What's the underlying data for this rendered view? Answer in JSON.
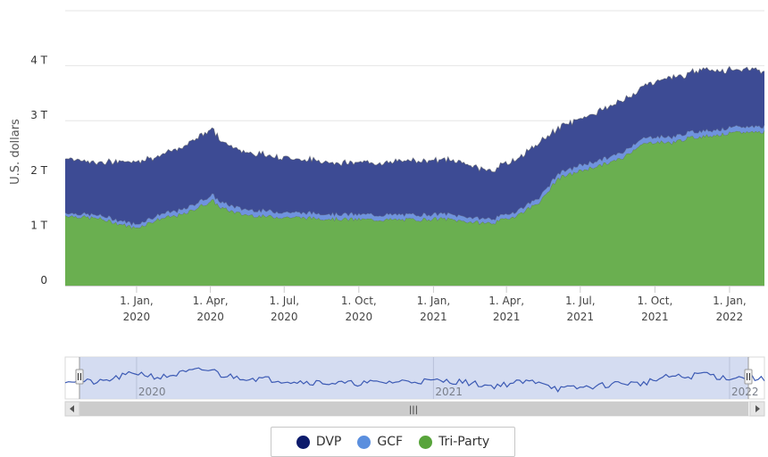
{
  "chart_data": {
    "type": "area",
    "stacked": true,
    "ylabel": "U.S. dollars",
    "yticks": [
      "0",
      "1 T",
      "2 T",
      "3 T",
      "4 T"
    ],
    "ylim": [
      0,
      5
    ],
    "unit": "trillions",
    "xticks": [
      {
        "day": 1,
        "date": "1. Jan,",
        "year": "2020"
      },
      {
        "day": 92,
        "date": "1. Apr,",
        "year": "2020"
      },
      {
        "day": 183,
        "date": "1. Jul,",
        "year": "2020"
      },
      {
        "day": 275,
        "date": "1. Oct,",
        "year": "2020"
      },
      {
        "day": 367,
        "date": "1. Jan,",
        "year": "2021"
      },
      {
        "day": 457,
        "date": "1. Apr,",
        "year": "2021"
      },
      {
        "day": 548,
        "date": "1. Jul,",
        "year": "2021"
      },
      {
        "day": 640,
        "date": "1. Oct,",
        "year": "2021"
      },
      {
        "day": 732,
        "date": "1. Jan,",
        "year": "2022"
      }
    ],
    "xrange_days": [
      -87,
      775
    ],
    "x": [
      -87,
      -45,
      0,
      30,
      60,
      80,
      95,
      105,
      130,
      160,
      200,
      260,
      300,
      340,
      380,
      400,
      420,
      440,
      470,
      500,
      520,
      550,
      580,
      600,
      620,
      640,
      660,
      680,
      700,
      720,
      740,
      760,
      775
    ],
    "series": [
      {
        "name": "Tri-Party",
        "color": "#6aaf50",
        "values": [
          1.28,
          1.22,
          1.05,
          1.22,
          1.3,
          1.45,
          1.55,
          1.42,
          1.3,
          1.26,
          1.24,
          1.21,
          1.2,
          1.2,
          1.22,
          1.18,
          1.15,
          1.14,
          1.28,
          1.55,
          1.95,
          2.1,
          2.22,
          2.32,
          2.55,
          2.62,
          2.6,
          2.68,
          2.72,
          2.75,
          2.78,
          2.8,
          2.8
        ]
      },
      {
        "name": "GCF",
        "color": "#6f93de",
        "values": [
          0.05,
          0.06,
          0.07,
          0.08,
          0.09,
          0.1,
          0.1,
          0.1,
          0.1,
          0.1,
          0.09,
          0.09,
          0.09,
          0.09,
          0.09,
          0.09,
          0.08,
          0.08,
          0.08,
          0.09,
          0.09,
          0.1,
          0.1,
          0.1,
          0.1,
          0.1,
          0.1,
          0.1,
          0.1,
          0.1,
          0.1,
          0.1,
          0.1
        ]
      },
      {
        "name": "DVP",
        "color": "#3d4b94",
        "values": [
          1.0,
          0.95,
          1.15,
          1.05,
          1.15,
          1.2,
          1.2,
          1.1,
          1.05,
          1.02,
          0.97,
          0.93,
          0.95,
          0.98,
          0.98,
          0.97,
          0.92,
          0.88,
          0.95,
          0.98,
          0.82,
          0.85,
          0.9,
          0.95,
          0.92,
          1.0,
          1.08,
          1.05,
          1.15,
          1.05,
          1.05,
          1.05,
          1.0
        ]
      }
    ],
    "navigator": {
      "year_labels": [
        {
          "day": 1,
          "label": "2020"
        },
        {
          "day": 367,
          "label": "2021"
        },
        {
          "day": 732,
          "label": "2022"
        }
      ],
      "handle_glyph": "|||"
    },
    "legend": {
      "position": "bottom-center"
    }
  }
}
